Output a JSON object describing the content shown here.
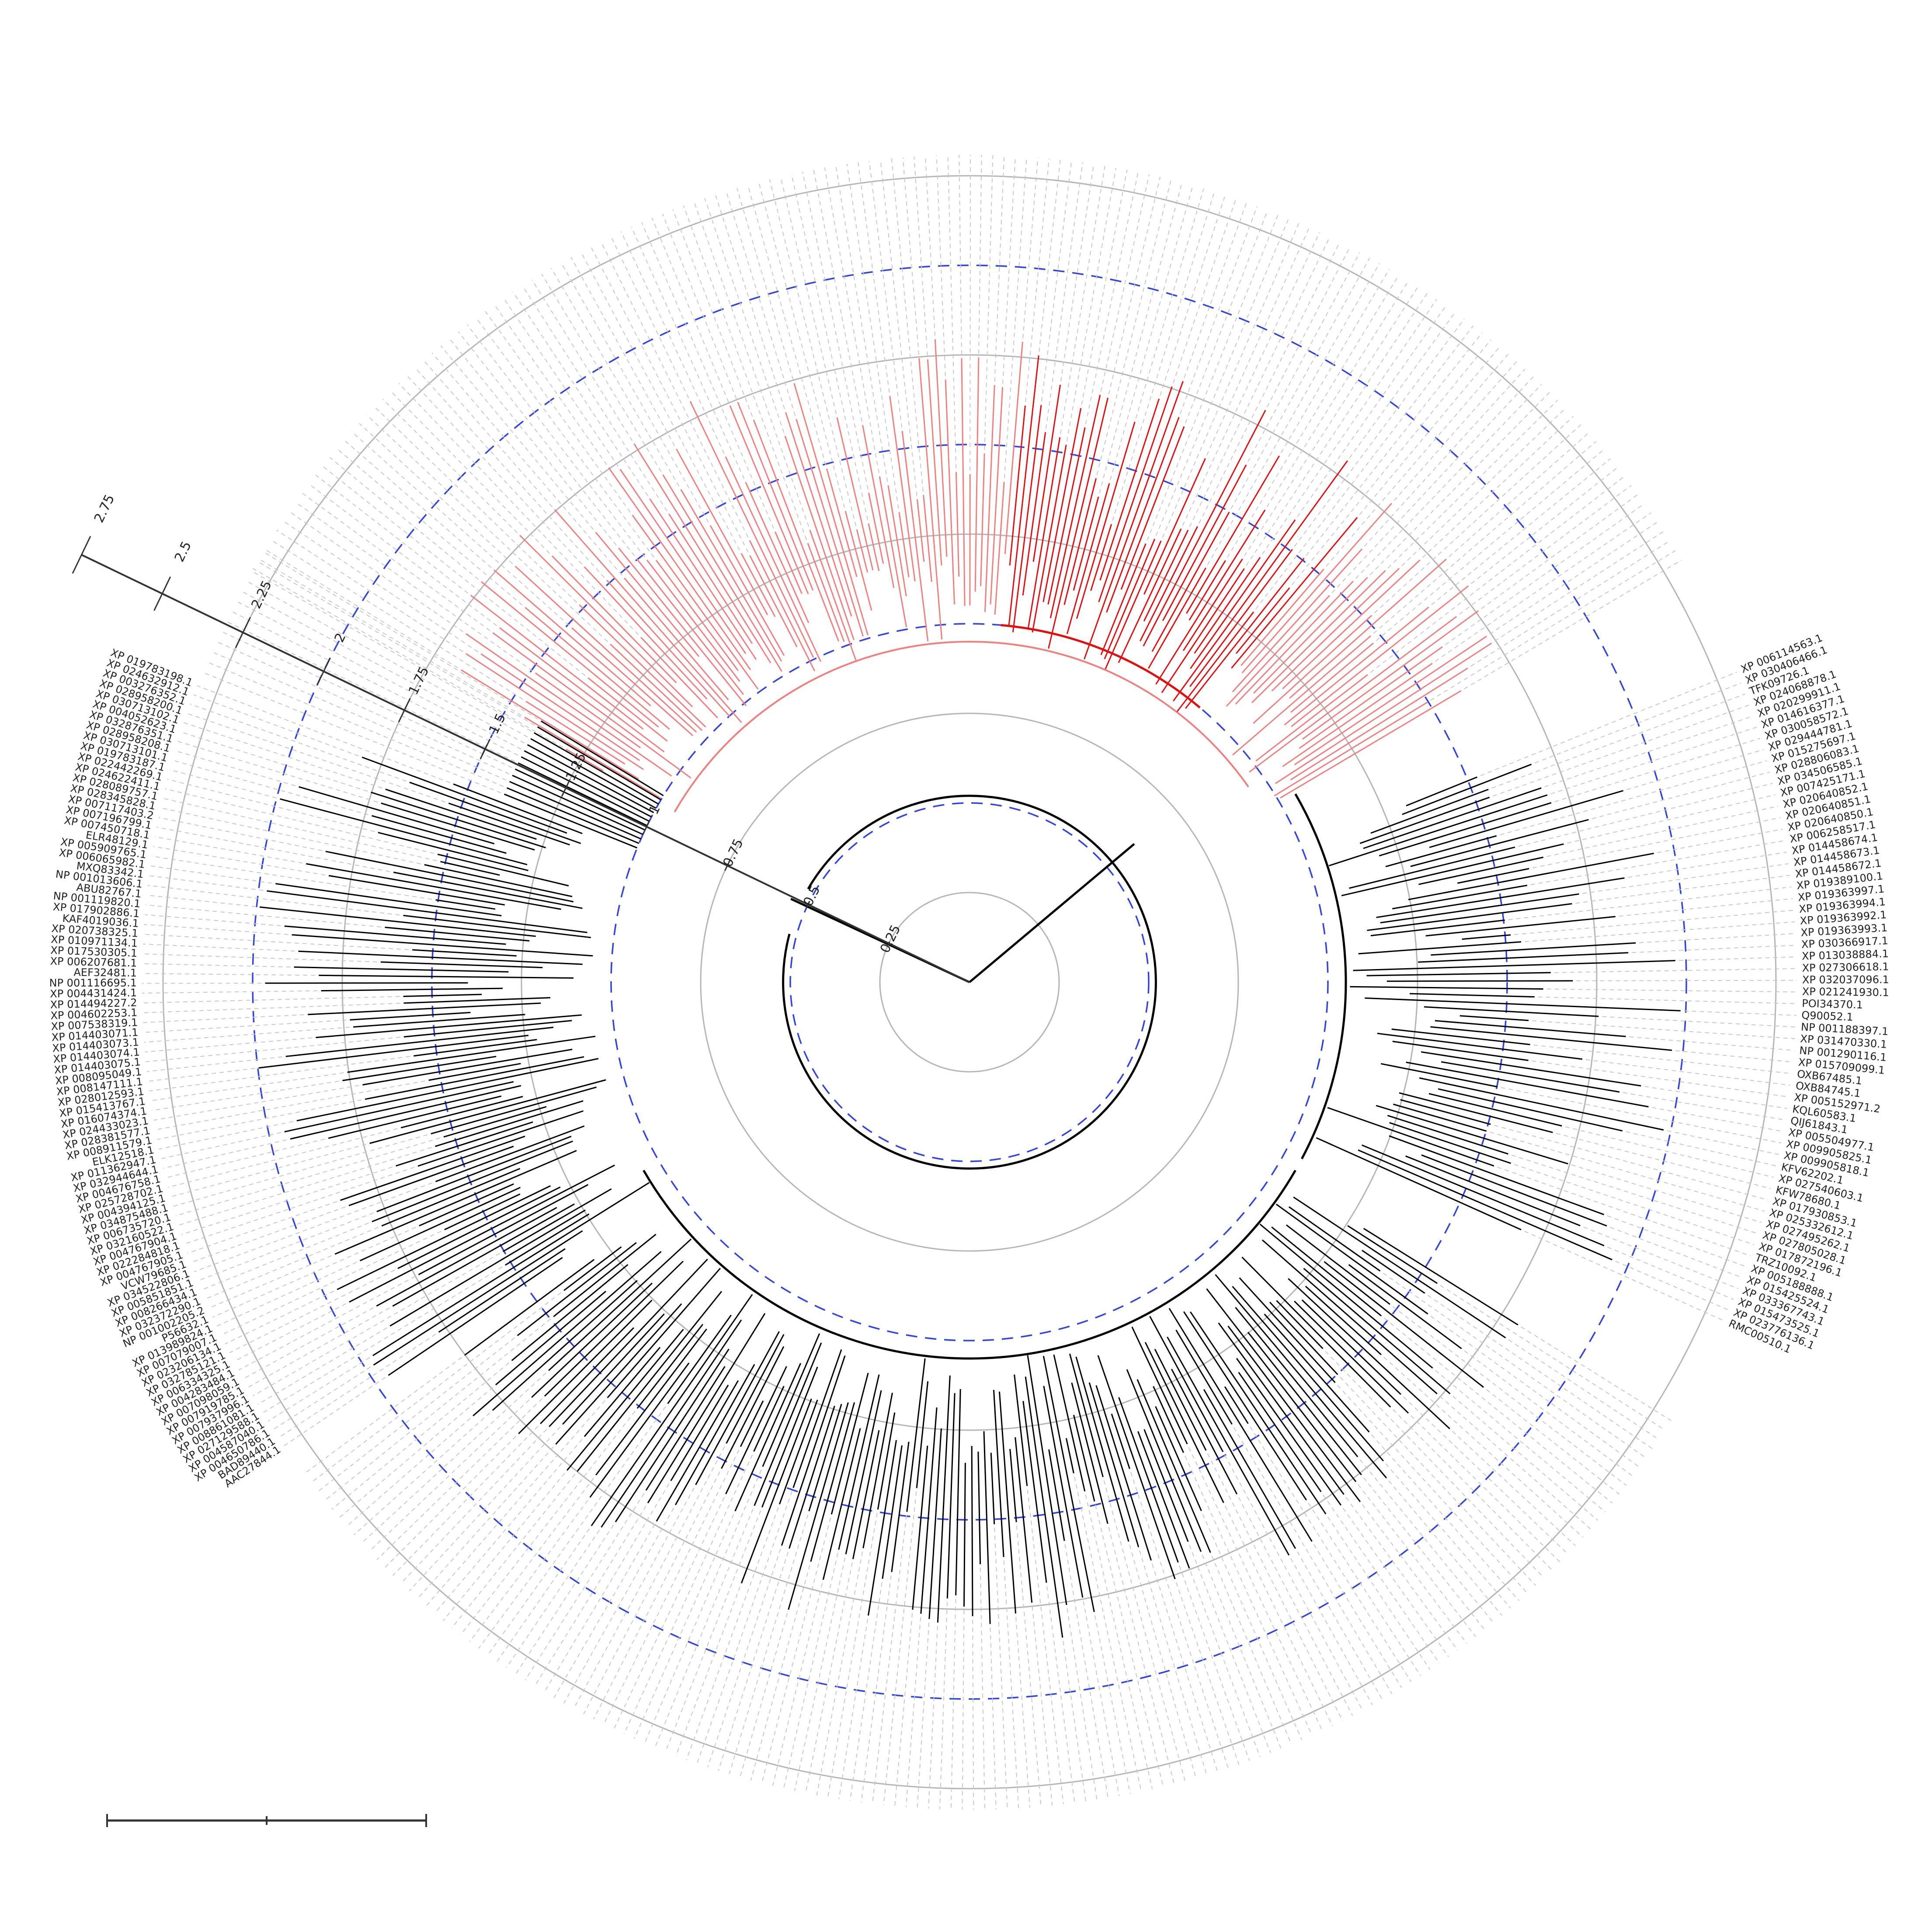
{
  "scale_axis": {
    "ticks": [
      "0.25",
      "0.5",
      "0.75",
      "1",
      "1.25",
      "1.5",
      "1.75",
      "2",
      "2.25",
      "2.5",
      "2.75"
    ]
  },
  "leaves_left": [
    "XP 019783198.1",
    "XP 024632912.1",
    "XP 003276352.1",
    "XP 028958200.1",
    "XP 030713102.1",
    "XP 004052623.1",
    "XP 032876351.1",
    "XP 028958208.1",
    "XP 030713101.1",
    "XP 019783187.1",
    "XP 022442269.1",
    "XP 024622411.1",
    "XP 028089757.1",
    "XP 028345828.1",
    "XP 007117403.2",
    "XP 007196799.1",
    "XP 007450718.1",
    "ELR48129.1",
    "XP 005909765.1",
    "XP 006065982.1",
    "MXQ83342.1",
    "NP 001013606.1",
    "ABU82767.1",
    "NP 001119820.1",
    "XP 017902886.1",
    "KAF4019036.1",
    "XP 020738325.1",
    "XP 010971134.1",
    "XP 017530305.1",
    "XP 006207681.1",
    "AEF32481.1",
    "NP 001116695.1",
    "XP 004431424.1",
    "XP 014494227.2",
    "XP 004602253.1",
    "XP 007538319.1",
    "XP 014403071.1",
    "XP 014403073.1",
    "XP 014403074.1",
    "XP 014403075.1",
    "XP 008095049.1",
    "XP 008147111.1",
    "XP 028012593.1",
    "XP 015413767.1",
    "XP 016074374.1",
    "XP 024433023.1",
    "XP 028381577.1",
    "XP 008911579.1",
    "ELK12518.1",
    "XP 011362947.1",
    "XP 032944644.1",
    "XP 004676758.1",
    "XP 025728702.1",
    "XP 004394125.1",
    "XP 034875488.1",
    "XP 006735720.1",
    "XP 032160522.1",
    "XP 004767904.1",
    "XP 022284818.1",
    "XP 004767905.1",
    "VCW79685.1",
    "XP 034522806.1",
    "XP 005851851.1",
    "XP 008266434.1",
    "XP 032372290.1",
    "NP 001002205.2",
    "P56632.1",
    "XP 013989824.1",
    "XP 007079007.1",
    "XP 023206134.1",
    "XP 032785121.1",
    "XP 006334325.1",
    "XP 004283484.1",
    "XP 007098059.1",
    "XP 007919785.1",
    "XP 007937996.1",
    "XP 008861081.1",
    "XP 027129588.1",
    "XP 004587040.1",
    "XP 004650786.1",
    "BAD89440.1",
    "AAC27844.1"
  ],
  "leaves_right": [
    "XP 006114563.1",
    "XP 030406466.1",
    "TFK09726.1",
    "XP 024068878.1",
    "XP 020299911.1",
    "XP 014616377.1",
    "XP 030058572.1",
    "XP 029444781.1",
    "XP 015275697.1",
    "XP 028806083.1",
    "XP 034506585.1",
    "XP 007425171.1",
    "XP 020640852.1",
    "XP 020640851.1",
    "XP 020640850.1",
    "XP 006258517.1",
    "XP 014458674.1",
    "XP 014458673.1",
    "XP 014458672.1",
    "XP 019389100.1",
    "XP 019363997.1",
    "XP 019363994.1",
    "XP 019363992.1",
    "XP 019363993.1",
    "XP 030366917.1",
    "XP 013038884.1",
    "XP 027306618.1",
    "XP 032037096.1",
    "XP 021241930.1",
    "POI34370.1",
    "Q90052.1",
    "NP 001188397.1",
    "XP 031470330.1",
    "NP 001290116.1",
    "XP 015709099.1",
    "OXB67485.1",
    "OXB84745.1",
    "XP 005152971.2",
    "KQL60583.1",
    "QIJ61843.1",
    "XP 005504977.1",
    "XP 009905825.1",
    "XP 009905818.1",
    "KFV62202.1",
    "XP 027540603.1",
    "KFW78680.1",
    "XP 017930853.1",
    "XP 025332612.1",
    "XP 027495262.1",
    "XP 027805028.1",
    "XP 017872196.1",
    "TRZ10092.1",
    "XP 005188888.1",
    "XP 015425524.1",
    "XP 033367743.1",
    "XP 015473525.1",
    "XP 023776136.1",
    "RMC00510.1"
  ]
}
